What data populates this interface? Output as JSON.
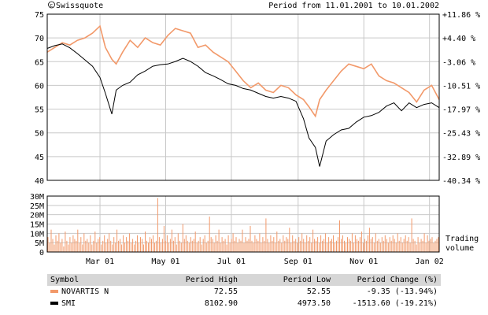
{
  "header": {
    "brand": "Swissquote",
    "period": "Period from 11.01.2001 to 10.01.2002"
  },
  "colors": {
    "novartis": "#f2996a",
    "smi": "#000000",
    "grid": "#c8c8c8",
    "header_row": "#d6d6d6"
  },
  "chart_data": [
    {
      "type": "line",
      "y_left": {
        "ylim": [
          40,
          75
        ],
        "ticks": [
          "40",
          "45",
          "50",
          "55",
          "60",
          "65",
          "70",
          "75"
        ]
      },
      "y_right": {
        "ylim": [
          -40.34,
          11.86
        ],
        "ticks": [
          "-40.34 %",
          "-32.89 %",
          "-25.43 %",
          "-17.97 %",
          "-10.51 %",
          "-3.06 %",
          "+4.40 %",
          "+11.86 %"
        ]
      },
      "x_ticks": [
        "Mar 01",
        "May 01",
        "Jul 01",
        "Sep 01",
        "Nov 01",
        "Jan 02"
      ],
      "series": [
        {
          "name": "NOVARTIS N",
          "axis": "left",
          "x": [
            "2001-01-11",
            "2001-01-18",
            "2001-01-25",
            "2001-02-01",
            "2001-02-08",
            "2001-02-15",
            "2001-02-22",
            "2001-03-01",
            "2001-03-06",
            "2001-03-12",
            "2001-03-16",
            "2001-03-22",
            "2001-03-29",
            "2001-04-05",
            "2001-04-12",
            "2001-04-19",
            "2001-04-26",
            "2001-05-03",
            "2001-05-10",
            "2001-05-17",
            "2001-05-24",
            "2001-05-31",
            "2001-06-07",
            "2001-06-14",
            "2001-06-21",
            "2001-06-28",
            "2001-07-05",
            "2001-07-12",
            "2001-07-19",
            "2001-07-26",
            "2001-08-02",
            "2001-08-09",
            "2001-08-16",
            "2001-08-23",
            "2001-08-30",
            "2001-09-06",
            "2001-09-11",
            "2001-09-17",
            "2001-09-21",
            "2001-09-27",
            "2001-10-04",
            "2001-10-11",
            "2001-10-18",
            "2001-10-25",
            "2001-11-01",
            "2001-11-08",
            "2001-11-15",
            "2001-11-22",
            "2001-11-29",
            "2001-12-06",
            "2001-12-13",
            "2001-12-20",
            "2001-12-27",
            "2002-01-03",
            "2002-01-10"
          ],
          "values": [
            67,
            68,
            69,
            68.5,
            69.5,
            70,
            71,
            72.5,
            68,
            65.5,
            64.5,
            67,
            69.5,
            68,
            70,
            69,
            68.5,
            70.5,
            72,
            71.5,
            71,
            68,
            68.5,
            67,
            66,
            65,
            63,
            61,
            59.5,
            60.5,
            59,
            58.5,
            60,
            59.5,
            58,
            57,
            55.5,
            53.5,
            57,
            59,
            61,
            63,
            64.5,
            64,
            63.5,
            64.5,
            62,
            61,
            60.5,
            59.5,
            58.5,
            56.5,
            59,
            60,
            57
          ]
        },
        {
          "name": "SMI",
          "axis": "right",
          "x": [
            "2001-01-11",
            "2001-01-18",
            "2001-01-25",
            "2001-02-01",
            "2001-02-08",
            "2001-02-15",
            "2001-02-22",
            "2001-03-01",
            "2001-03-06",
            "2001-03-12",
            "2001-03-16",
            "2001-03-22",
            "2001-03-29",
            "2001-04-05",
            "2001-04-12",
            "2001-04-19",
            "2001-04-26",
            "2001-05-03",
            "2001-05-10",
            "2001-05-17",
            "2001-05-24",
            "2001-05-31",
            "2001-06-07",
            "2001-06-14",
            "2001-06-21",
            "2001-06-28",
            "2001-07-05",
            "2001-07-12",
            "2001-07-19",
            "2001-07-26",
            "2001-08-02",
            "2001-08-09",
            "2001-08-16",
            "2001-08-23",
            "2001-08-30",
            "2001-09-06",
            "2001-09-11",
            "2001-09-17",
            "2001-09-21",
            "2001-09-27",
            "2001-10-04",
            "2001-10-11",
            "2001-10-18",
            "2001-10-25",
            "2001-11-01",
            "2001-11-08",
            "2001-11-15",
            "2001-11-22",
            "2001-11-29",
            "2001-12-06",
            "2001-12-13",
            "2001-12-20",
            "2001-12-27",
            "2002-01-03",
            "2002-01-10"
          ],
          "values": [
            1.1,
            2.0,
            2.5,
            1.3,
            -0.5,
            -2.5,
            -4.5,
            -8.0,
            -13.0,
            -19.5,
            -12.0,
            -10.5,
            -9.5,
            -7.2,
            -6.0,
            -4.5,
            -4.0,
            -3.8,
            -3.0,
            -2.0,
            -3.0,
            -4.5,
            -6.5,
            -7.5,
            -8.7,
            -10.0,
            -10.5,
            -11.5,
            -12.0,
            -13.0,
            -14.0,
            -14.5,
            -14.0,
            -14.5,
            -15.5,
            -21.0,
            -27.0,
            -30.0,
            -36.0,
            -28.0,
            -26.0,
            -24.5,
            -24.0,
            -22.0,
            -20.5,
            -20.0,
            -19.0,
            -17.0,
            -16.0,
            -18.5,
            -16.0,
            -17.5,
            -16.5,
            -16.0,
            -17.5
          ]
        }
      ]
    },
    {
      "type": "bar",
      "name": "Trading volume",
      "ylim": [
        0,
        30000000
      ],
      "ticks": [
        "0",
        "5M",
        "10M",
        "15M",
        "20M",
        "25M",
        "30M"
      ],
      "label": [
        "Trading",
        "volume"
      ],
      "x_ticks": [
        "Mar 01",
        "May 01",
        "Jul 01",
        "Sep 01",
        "Nov 01",
        "Jan 02"
      ],
      "values": [
        8000000,
        5000000,
        12000000,
        7000000,
        4000000,
        9000000,
        6000000,
        10000000,
        5000000,
        7000000,
        3000000,
        11000000,
        6000000,
        4000000,
        8000000,
        5000000,
        9000000,
        7000000,
        6000000,
        12000000,
        5000000,
        8000000,
        4000000,
        10000000,
        6000000,
        7000000,
        5000000,
        9000000,
        4000000,
        6000000,
        11000000,
        5000000,
        7000000,
        8000000,
        4000000,
        6000000,
        9000000,
        5000000,
        7000000,
        10000000,
        6000000,
        4000000,
        8000000,
        5000000,
        12000000,
        6000000,
        7000000,
        4000000,
        9000000,
        5000000,
        8000000,
        6000000,
        10000000,
        5000000,
        7000000,
        4000000,
        6000000,
        9000000,
        5000000,
        8000000,
        7000000,
        4000000,
        11000000,
        6000000,
        5000000,
        8000000,
        7000000,
        9000000,
        5000000,
        6000000,
        29000000,
        8000000,
        5000000,
        7000000,
        14000000,
        6000000,
        9000000,
        5000000,
        7000000,
        12000000,
        6000000,
        8000000,
        4000000,
        10000000,
        6000000,
        5000000,
        15000000,
        7000000,
        9000000,
        6000000,
        5000000,
        8000000,
        6000000,
        7000000,
        11000000,
        5000000,
        6000000,
        8000000,
        4000000,
        7000000,
        9000000,
        5000000,
        6000000,
        19000000,
        8000000,
        7000000,
        5000000,
        9000000,
        6000000,
        12000000,
        5000000,
        8000000,
        6000000,
        7000000,
        4000000,
        9000000,
        5000000,
        7000000,
        10000000,
        6000000,
        8000000,
        5000000,
        7000000,
        6000000,
        12000000,
        5000000,
        8000000,
        6000000,
        7000000,
        14000000,
        6000000,
        5000000,
        9000000,
        7000000,
        6000000,
        10000000,
        5000000,
        8000000,
        6000000,
        18000000,
        7000000,
        5000000,
        9000000,
        6000000,
        8000000,
        5000000,
        11000000,
        6000000,
        7000000,
        5000000,
        9000000,
        6000000,
        8000000,
        7000000,
        13000000,
        5000000,
        9000000,
        6000000,
        7000000,
        5000000,
        8000000,
        6000000,
        10000000,
        7000000,
        5000000,
        9000000,
        6000000,
        8000000,
        5000000,
        12000000,
        7000000,
        6000000,
        8000000,
        5000000,
        9000000,
        6000000,
        7000000,
        10000000,
        5000000,
        8000000,
        6000000,
        7000000,
        9000000,
        5000000,
        6000000,
        8000000,
        17000000,
        7000000,
        9000000,
        6000000,
        5000000,
        8000000,
        7000000,
        6000000,
        10000000,
        5000000,
        9000000,
        7000000,
        6000000,
        8000000,
        11000000,
        5000000,
        7000000,
        6000000,
        9000000,
        13000000,
        7000000,
        8000000,
        5000000,
        10000000,
        6000000,
        7000000,
        5000000,
        8000000,
        6000000,
        9000000,
        7000000,
        5000000,
        8000000,
        6000000,
        9000000,
        7000000,
        5000000,
        10000000,
        6000000,
        8000000,
        5000000,
        7000000,
        9000000,
        6000000,
        8000000,
        5000000,
        18000000,
        7000000,
        6000000,
        4000000,
        8000000,
        5000000,
        7000000,
        6000000,
        10000000,
        5000000,
        9000000,
        6000000,
        7000000,
        8000000,
        5000000,
        6000000,
        7000000,
        8000000
      ]
    }
  ],
  "table": {
    "headers": [
      "Symbol",
      "Period High",
      "Period Low",
      "Period Change (%)"
    ],
    "rows": [
      {
        "symbol": "NOVARTIS N",
        "high": "72.55",
        "low": "52.55",
        "change": "-9.35 (-13.94%)",
        "color": "#f2996a"
      },
      {
        "symbol": "SMI",
        "high": "8102.90",
        "low": "4973.50",
        "change": "-1513.60 (-19.21%)",
        "color": "#000000"
      }
    ]
  }
}
